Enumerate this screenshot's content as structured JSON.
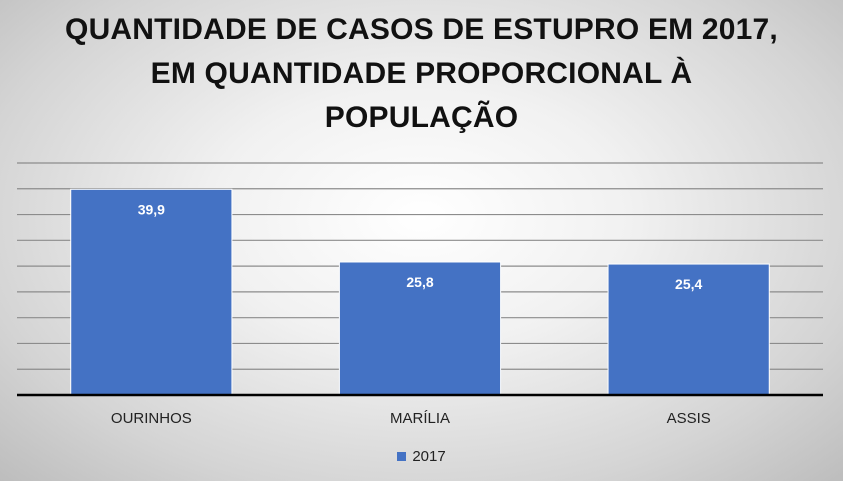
{
  "chart_data": {
    "type": "bar",
    "title": "QUANTIDADE DE CASOS DE ESTUPRO EM 2017, EM QUANTIDADE PROPORCIONAL À POPULAÇÃO",
    "categories": [
      "OURINHOS",
      "MARÍLIA",
      "ASSIS"
    ],
    "series": [
      {
        "name": "2017",
        "values": [
          39.9,
          25.8,
          25.4
        ],
        "labels": [
          "39,9",
          "25,8",
          "25,4"
        ],
        "color": "#4472C4"
      }
    ],
    "ylim": [
      0,
      45
    ],
    "grid": true,
    "legend_position": "bottom"
  }
}
